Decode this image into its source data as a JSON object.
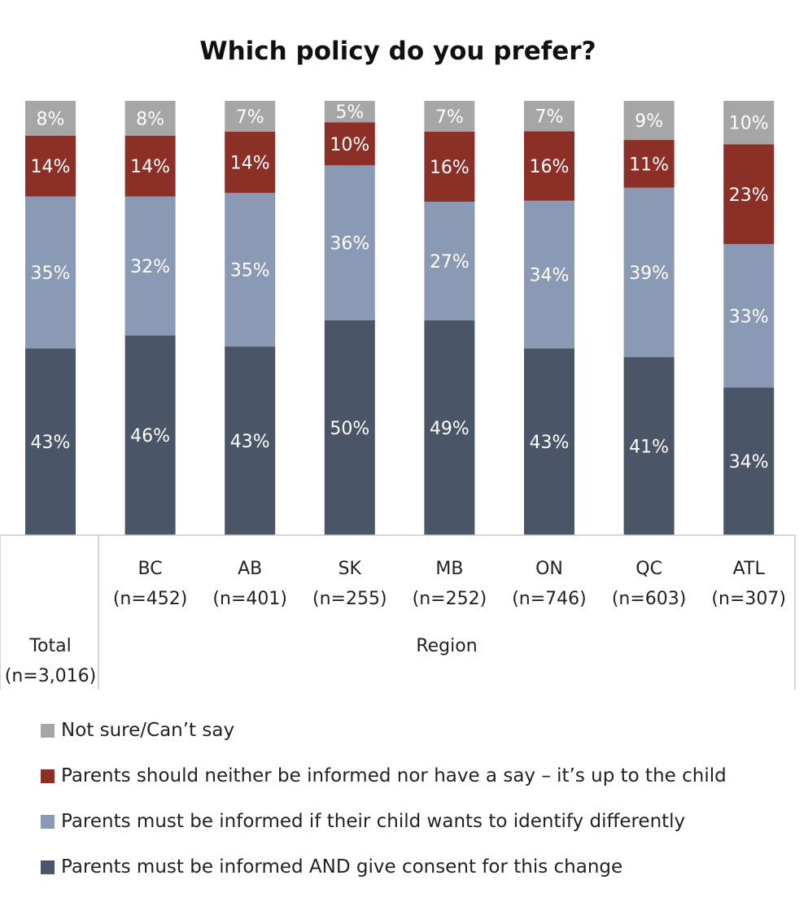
{
  "chart_data": {
    "type": "bar",
    "stacked": true,
    "title": "Which policy do you prefer?",
    "categories": [
      {
        "label": "Total",
        "n": "(n=3,016)"
      },
      {
        "label": "BC",
        "n": "(n=452)"
      },
      {
        "label": "AB",
        "n": "(n=401)"
      },
      {
        "label": "SK",
        "n": "(n=255)"
      },
      {
        "label": "MB",
        "n": "(n=252)"
      },
      {
        "label": "ON",
        "n": "(n=746)"
      },
      {
        "label": "QC",
        "n": "(n=603)"
      },
      {
        "label": "ATL",
        "n": "(n=307)"
      }
    ],
    "group_label": "Region",
    "series": [
      {
        "name": "Parents must be informed AND give consent for this change",
        "color": "#4a5568",
        "values": [
          43,
          46,
          43,
          50,
          49,
          43,
          41,
          34
        ]
      },
      {
        "name": "Parents must be informed if their child wants to identify differently",
        "color": "#8a9ab5",
        "values": [
          35,
          32,
          35,
          36,
          27,
          34,
          39,
          33
        ]
      },
      {
        "name": "Parents should neither be informed nor have a say – it’s up to the child",
        "color": "#8b2f27",
        "values": [
          14,
          14,
          14,
          10,
          16,
          16,
          11,
          23
        ]
      },
      {
        "name": "Not sure/Can’t say",
        "color": "#a6a6a6",
        "values": [
          8,
          8,
          7,
          5,
          7,
          7,
          9,
          10
        ]
      }
    ],
    "legend_order": [
      3,
      2,
      1,
      0
    ],
    "legend_position": "bottom-left",
    "value_suffix": "%"
  }
}
